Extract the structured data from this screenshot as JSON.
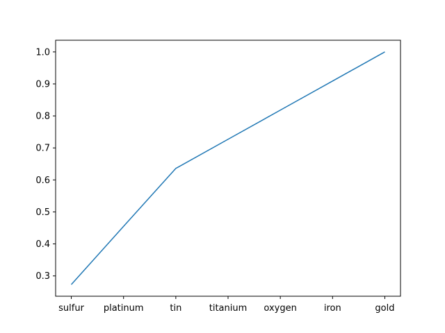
{
  "chart_data": {
    "type": "line",
    "categories": [
      "sulfur",
      "platinum",
      "tin",
      "titanium",
      "oxygen",
      "iron",
      "gold"
    ],
    "series": [
      {
        "values": [
          0.273,
          0.455,
          0.636,
          0.727,
          0.818,
          0.909,
          1.0
        ]
      }
    ],
    "ylim": [
      0.2365,
      1.0365
    ],
    "yticks": [
      0.3,
      0.4,
      0.5,
      0.6,
      0.7,
      0.8,
      0.9,
      1.0
    ],
    "ytick_labels": [
      "0.3",
      "0.4",
      "0.5",
      "0.6",
      "0.7",
      "0.8",
      "0.9",
      "1.0"
    ],
    "grid": false,
    "line_color": "#1f77b4"
  }
}
